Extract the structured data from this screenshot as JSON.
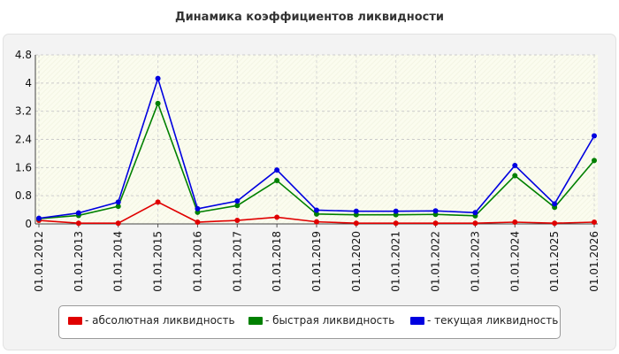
{
  "chart_data": {
    "type": "line",
    "title": "Динамика коэффициентов ликвидности",
    "xlabel": "",
    "ylabel": "",
    "categories": [
      "01.01.2012",
      "01.01.2013",
      "01.01.2014",
      "01.01.2015",
      "01.01.2016",
      "01.01.2017",
      "01.01.2018",
      "01.01.2019",
      "01.01.2020",
      "01.01.2021",
      "01.01.2022",
      "01.01.2023",
      "01.01.2024",
      "01.01.2025",
      "01.01.2026"
    ],
    "ylim": [
      0,
      4.8
    ],
    "yticks": [
      "0",
      "0.8",
      "1.6",
      "2.4",
      "3.2",
      "4",
      "4.8"
    ],
    "grid": true,
    "legend_position": "bottom",
    "series": [
      {
        "name": "- абсолютная ликвидность",
        "color": "#e00000",
        "values": [
          0.1,
          0.02,
          0.02,
          0.62,
          0.05,
          0.1,
          0.19,
          0.06,
          0.02,
          0.02,
          0.02,
          0.02,
          0.05,
          0.02,
          0.05
        ]
      },
      {
        "name": "- быстрая ликвидность",
        "color": "#008000",
        "values": [
          0.15,
          0.24,
          0.5,
          3.42,
          0.33,
          0.52,
          1.23,
          0.28,
          0.26,
          0.26,
          0.27,
          0.23,
          1.37,
          0.47,
          1.8
        ]
      },
      {
        "name": "- текущая ликвидность",
        "color": "#0000e0",
        "values": [
          0.16,
          0.31,
          0.62,
          4.13,
          0.43,
          0.65,
          1.53,
          0.39,
          0.36,
          0.36,
          0.37,
          0.32,
          1.66,
          0.57,
          2.5
        ]
      }
    ]
  }
}
